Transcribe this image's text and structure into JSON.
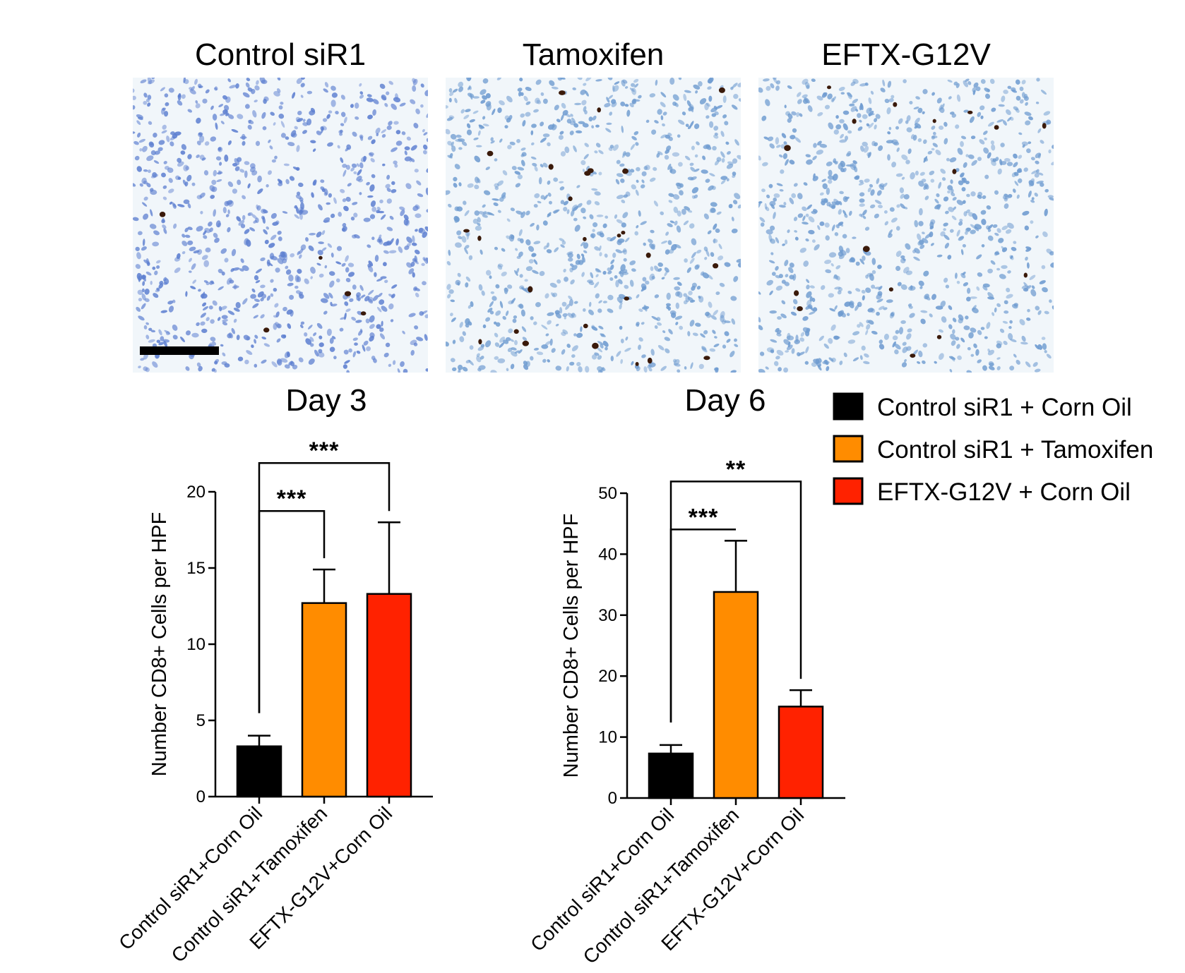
{
  "micrographs": {
    "panels": [
      {
        "label": "Control siR1",
        "stain_count": 5,
        "seed": 11
      },
      {
        "label": "Tamoxifen",
        "stain_count": 26,
        "seed": 23
      },
      {
        "label": "EFTX-G12V",
        "stain_count": 16,
        "seed": 37
      }
    ],
    "scale_bar": true
  },
  "colors": {
    "control_corn_oil": "#000000",
    "control_tamoxifen": "#FF8C00",
    "eftx_corn_oil": "#FF2200",
    "tissue_bg": "#F1F6FA",
    "nucleus": "#6E9BD0",
    "stain": "#3A1A0A"
  },
  "legend": {
    "items": [
      {
        "label": "Control siR1 + Corn Oil",
        "color": "#000000"
      },
      {
        "label": "Control siR1 + Tamoxifen",
        "color": "#FF8C00"
      },
      {
        "label": "EFTX-G12V + Corn Oil",
        "color": "#FF2200"
      }
    ]
  },
  "chart_data": [
    {
      "type": "bar",
      "title": "Day 3",
      "ylabel": "Number CD8+ Cells per HPF",
      "xlabel": "",
      "ylim": [
        0,
        20
      ],
      "yticks": [
        0,
        5,
        10,
        15,
        20
      ],
      "categories": [
        "Control siR1+Corn Oil",
        "Control siR1+Tamoxifen",
        "EFTX-G12V+Corn Oil"
      ],
      "values": [
        3.3,
        12.7,
        13.3
      ],
      "errors": [
        0.7,
        2.2,
        4.7
      ],
      "colors": [
        "#000000",
        "#FF8C00",
        "#FF2200"
      ],
      "significance": [
        {
          "from": 0,
          "to": 1,
          "label": "***",
          "level": 1
        },
        {
          "from": 0,
          "to": 2,
          "label": "***",
          "level": 2
        }
      ]
    },
    {
      "type": "bar",
      "title": "Day 6",
      "ylabel": "Number CD8+ Cells per HPF",
      "xlabel": "",
      "ylim": [
        0,
        50
      ],
      "yticks": [
        0,
        10,
        20,
        30,
        40,
        50
      ],
      "categories": [
        "Control siR1+Corn Oil",
        "Control siR1+Tamoxifen",
        "EFTX-G12V+Corn Oil"
      ],
      "values": [
        7.3,
        33.8,
        15.0
      ],
      "errors": [
        1.4,
        8.4,
        2.7
      ],
      "colors": [
        "#000000",
        "#FF8C00",
        "#FF2200"
      ],
      "significance": [
        {
          "from": 0,
          "to": 1,
          "label": "***",
          "level": 1
        },
        {
          "from": 0,
          "to": 2,
          "label": "**",
          "level": 2
        }
      ]
    }
  ]
}
